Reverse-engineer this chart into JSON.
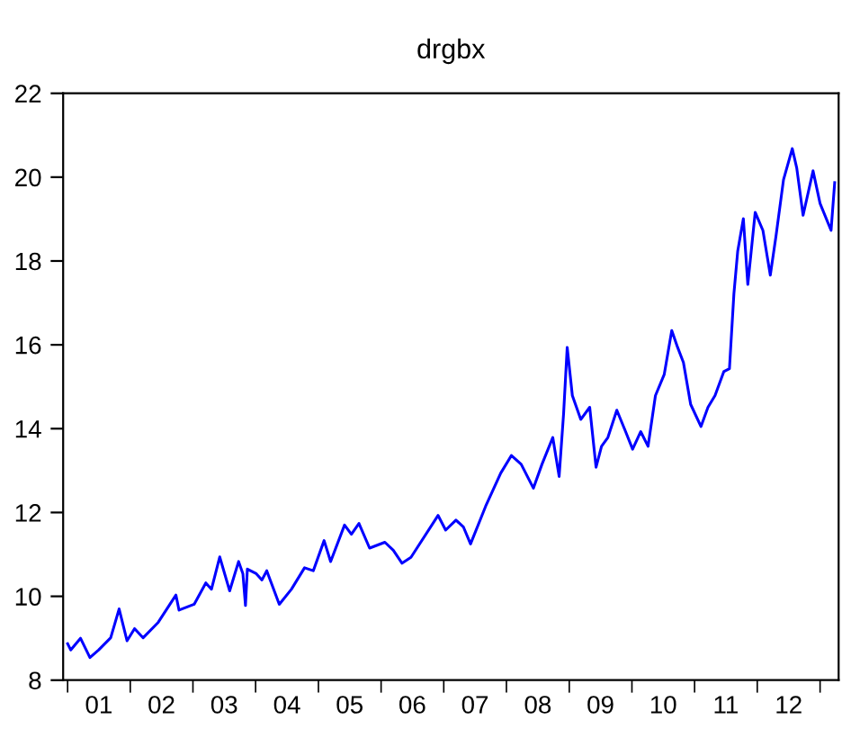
{
  "chart_data": {
    "type": "line",
    "title": "drgbx",
    "series": [
      {
        "color": "#0000ff",
        "x": [
          "2001-01-01",
          "2001-01-19",
          "2001-03-17",
          "2001-05-11",
          "2001-07-01",
          "2001-09-09",
          "2001-10-28",
          "2001-12-13",
          "2002-01-26",
          "2002-03-17",
          "2002-06-13",
          "2002-09-24",
          "2002-10-12",
          "2003-01-08",
          "2003-03-17",
          "2003-04-19",
          "2003-06-06",
          "2003-08-03",
          "2003-09-24",
          "2003-10-19",
          "2003-11-03",
          "2003-11-14",
          "2004-01-05",
          "2004-02-07",
          "2004-03-06",
          "2004-05-18",
          "2004-07-28",
          "2004-10-12",
          "2004-12-02",
          "2005-02-03",
          "2005-03-13",
          "2005-06-02",
          "2005-07-12",
          "2005-08-25",
          "2005-10-26",
          "2006-01-23",
          "2006-03-13",
          "2006-05-03",
          "2006-06-24",
          "2006-11-29",
          "2007-01-12",
          "2007-03-13",
          "2007-04-26",
          "2007-06-06",
          "2007-09-02",
          "2007-11-29",
          "2008-01-30",
          "2008-03-27",
          "2008-06-06",
          "2008-07-26",
          "2008-09-27",
          "2008-11-03",
          "2008-11-29",
          "2008-12-20",
          "2009-01-19",
          "2009-03-09",
          "2009-04-30",
          "2009-06-06",
          "2009-07-08",
          "2009-08-14",
          "2009-10-05",
          "2009-11-25",
          "2010-01-05",
          "2010-02-21",
          "2010-04-05",
          "2010-05-18",
          "2010-07-08",
          "2010-08-21",
          "2010-09-24",
          "2010-10-28",
          "2010-12-09",
          "2011-02-07",
          "2011-03-20",
          "2011-04-30",
          "2011-06-20",
          "2011-07-23",
          "2011-08-18",
          "2011-09-09",
          "2011-10-12",
          "2011-11-07",
          "2011-12-20",
          "2012-02-03",
          "2012-03-17",
          "2012-04-19",
          "2012-06-02",
          "2012-07-23",
          "2012-08-18",
          "2012-09-24",
          "2012-11-21",
          "2013-01-01",
          "2013-03-06",
          "2013-03-27"
        ],
        "values": [
          8.87,
          8.72,
          9.0,
          8.54,
          8.72,
          9.01,
          9.7,
          8.94,
          9.23,
          9.01,
          9.38,
          10.03,
          9.67,
          9.81,
          10.32,
          10.17,
          10.94,
          10.13,
          10.83,
          10.54,
          9.78,
          10.65,
          10.54,
          10.39,
          10.61,
          9.81,
          10.17,
          10.68,
          10.61,
          11.33,
          10.83,
          11.7,
          11.48,
          11.74,
          11.15,
          11.29,
          11.1,
          10.79,
          10.93,
          11.93,
          11.58,
          11.82,
          11.65,
          11.25,
          12.15,
          12.94,
          13.36,
          13.15,
          12.58,
          13.15,
          13.79,
          12.86,
          14.36,
          15.94,
          14.79,
          14.22,
          14.51,
          13.08,
          13.58,
          13.79,
          14.44,
          13.93,
          13.51,
          13.93,
          13.58,
          14.79,
          15.29,
          16.34,
          15.94,
          15.58,
          14.58,
          14.05,
          14.51,
          14.79,
          15.36,
          15.43,
          17.22,
          18.23,
          19.01,
          17.44,
          19.16,
          18.73,
          17.66,
          18.59,
          19.94,
          20.68,
          20.22,
          19.09,
          20.15,
          19.37,
          18.73,
          19.87
        ]
      }
    ],
    "xlim": [
      "2000-12-06",
      "2013-04-19"
    ],
    "xticks": [
      {
        "value": "2001-01-01",
        "label": null
      },
      {
        "value": "2002-01-01",
        "label": null
      },
      {
        "value": "2003-01-01",
        "label": null
      },
      {
        "value": "2004-01-01",
        "label": null
      },
      {
        "value": "2005-01-01",
        "label": null
      },
      {
        "value": "2006-01-01",
        "label": null
      },
      {
        "value": "2007-01-01",
        "label": null
      },
      {
        "value": "2008-01-01",
        "label": null
      },
      {
        "value": "2009-01-01",
        "label": null
      },
      {
        "value": "2010-01-01",
        "label": null
      },
      {
        "value": "2011-01-01",
        "label": null
      },
      {
        "value": "2012-01-01",
        "label": null
      },
      {
        "value": "2013-01-01",
        "label": null
      },
      {
        "value": "2001-07-02",
        "label": "01"
      },
      {
        "value": "2002-07-02",
        "label": "02"
      },
      {
        "value": "2003-07-02",
        "label": "03"
      },
      {
        "value": "2004-07-02",
        "label": "04"
      },
      {
        "value": "2005-07-02",
        "label": "05"
      },
      {
        "value": "2006-07-02",
        "label": "06"
      },
      {
        "value": "2007-07-02",
        "label": "07"
      },
      {
        "value": "2008-07-02",
        "label": "08"
      },
      {
        "value": "2009-07-02",
        "label": "09"
      },
      {
        "value": "2010-07-02",
        "label": "10"
      },
      {
        "value": "2011-07-02",
        "label": "11"
      },
      {
        "value": "2012-07-02",
        "label": "12"
      }
    ],
    "ylim": [
      8,
      22
    ],
    "yticks": [
      8,
      10,
      12,
      14,
      16,
      18,
      20,
      22
    ],
    "grid": false,
    "line_style": "solid",
    "marker": "none"
  }
}
